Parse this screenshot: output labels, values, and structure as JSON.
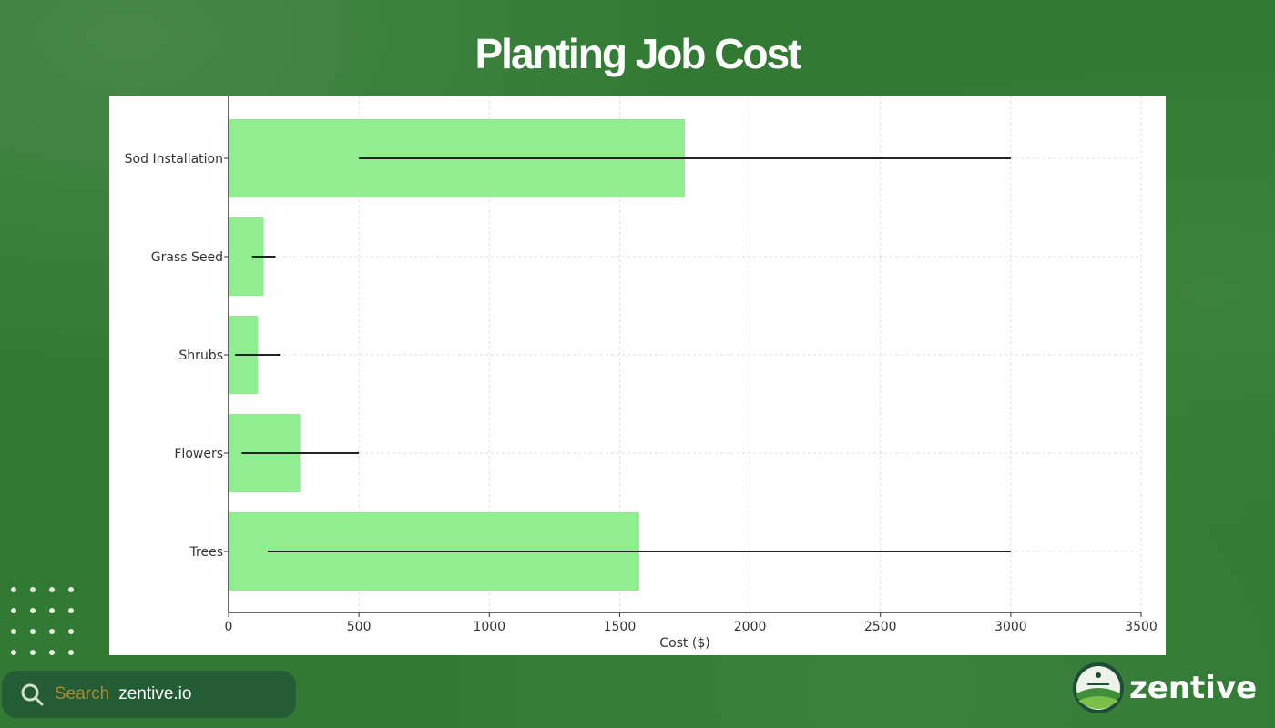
{
  "chart_data": {
    "type": "bar",
    "orientation": "horizontal",
    "title": "Planting Job Cost",
    "xlabel": "Cost ($)",
    "ylabel": "",
    "categories": [
      "Sod Installation",
      "Grass Seed",
      "Shrubs",
      "Flowers",
      "Trees"
    ],
    "values": [
      1750,
      135,
      112.5,
      275,
      1575
    ],
    "ranges": [
      [
        500,
        3000
      ],
      [
        90,
        180
      ],
      [
        25,
        200
      ],
      [
        50,
        500
      ],
      [
        150,
        3000
      ]
    ],
    "xlim": [
      0,
      3500
    ],
    "xticks": [
      "0",
      "500",
      "1000",
      "1500",
      "2000",
      "2500",
      "3000",
      "3500"
    ],
    "grid": true,
    "bar_color": "#90ee90",
    "range_color": "#222222"
  },
  "footer": {
    "search_label": "Search",
    "search_value": "zentive.io",
    "brand": "zentive"
  },
  "colors": {
    "background": "#327a34",
    "search_bg": "#235c35",
    "search_label": "#b08a2a"
  }
}
